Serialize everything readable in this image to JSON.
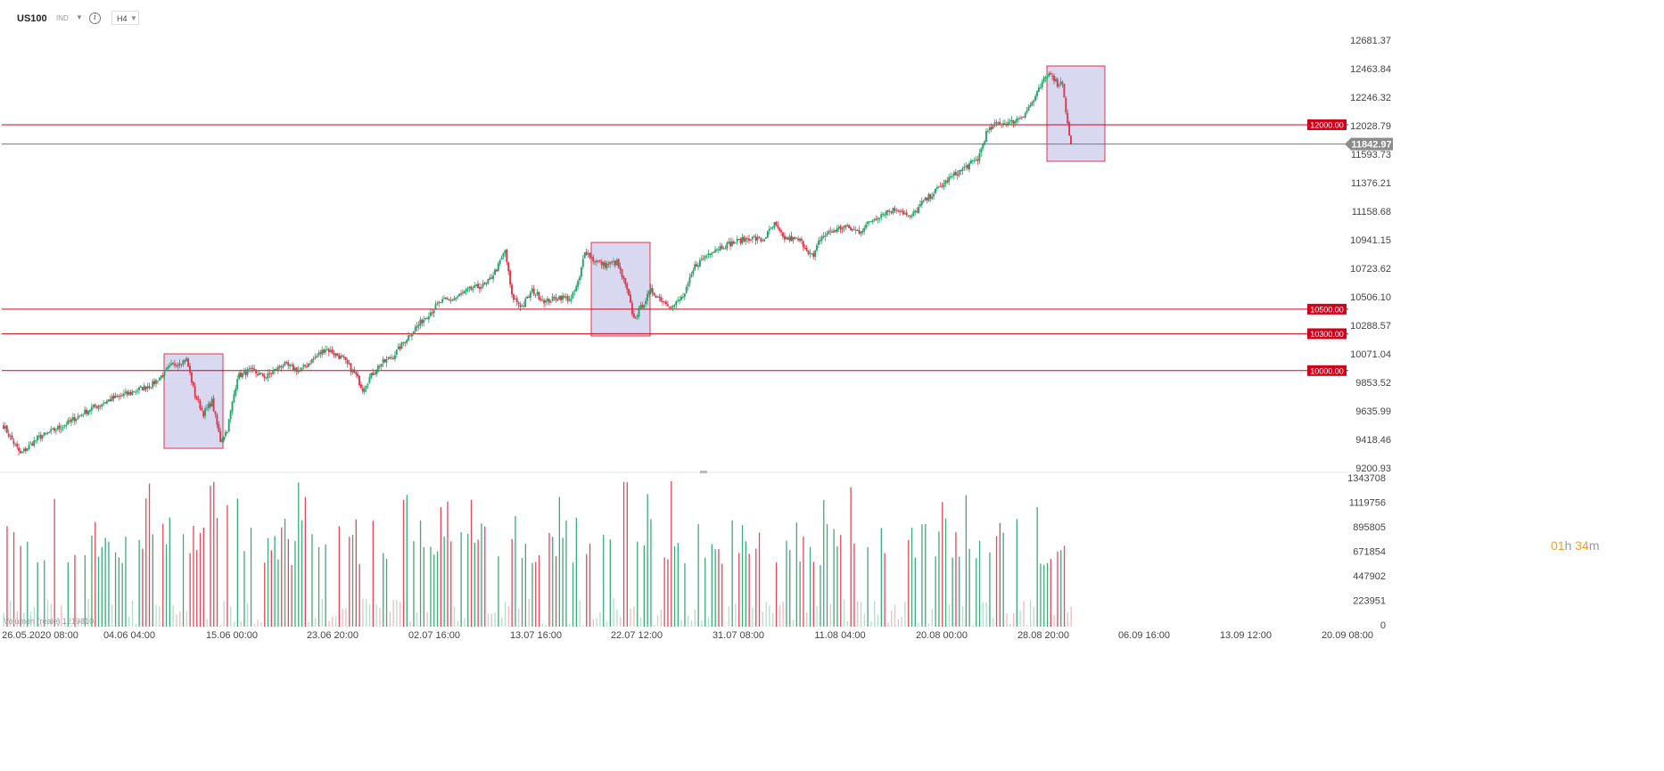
{
  "header": {
    "symbol": "US100",
    "symbol_type": "IND",
    "timeframe": "H4"
  },
  "countdown": {
    "hours": "01",
    "h_unit": "h",
    "minutes": "34",
    "m_unit": "m"
  },
  "volume_label": "Volumen (reale) 1219810",
  "price_axis_ticks": [
    "12681.37",
    "12463.84",
    "12246.32",
    "12028.79",
    "11593.73",
    "11376.21",
    "11158.68",
    "10941.15",
    "10723.62",
    "10506.10",
    "10288.57",
    "10071.04",
    "9853.52",
    "9635.99",
    "9418.46",
    "9200.93"
  ],
  "volume_axis_ticks": [
    "1343708",
    "1119756",
    "895805",
    "671854",
    "447902",
    "223951",
    "0"
  ],
  "time_axis_ticks": [
    "26.05.2020  08:00",
    "04.06  04:00",
    "15.06  00:00",
    "23.06  20:00",
    "02.07  16:00",
    "13.07  16:00",
    "22.07  12:00",
    "31.07  08:00",
    "11.08  04:00",
    "20.08  00:00",
    "28.08  20:00",
    "06.09  16:00",
    "13.09  12:00",
    "20.09  08:00"
  ],
  "colors": {
    "bull": "#26a269",
    "bear": "#e0344a",
    "level_line": "#d0021b",
    "current_line": "#777777",
    "highlight_fill": "#c8c8ea",
    "highlight_stroke": "#e0344a"
  },
  "chart_data": {
    "type": "candlestick",
    "symbol": "US100",
    "timeframe": "H4",
    "y_range": [
      9200.93,
      12681.37
    ],
    "current_price": "11842.97",
    "levels": [
      {
        "label": "12000.00",
        "value": 12000
      },
      {
        "label": "10500.00",
        "value": 10500
      },
      {
        "label": "10300.00",
        "value": 10300
      },
      {
        "label": "10000.00",
        "value": 10000
      }
    ],
    "price_path": [
      [
        0,
        9550
      ],
      [
        10,
        9320
      ],
      [
        20,
        9450
      ],
      [
        35,
        9550
      ],
      [
        50,
        9680
      ],
      [
        62,
        9760
      ],
      [
        75,
        9820
      ],
      [
        88,
        9890
      ],
      [
        100,
        10050
      ],
      [
        108,
        10090
      ],
      [
        113,
        9800
      ],
      [
        118,
        9650
      ],
      [
        123,
        9750
      ],
      [
        128,
        9430
      ],
      [
        132,
        9520
      ],
      [
        138,
        9950
      ],
      [
        145,
        10000
      ],
      [
        155,
        9950
      ],
      [
        165,
        10050
      ],
      [
        175,
        10000
      ],
      [
        185,
        10120
      ],
      [
        190,
        10180
      ],
      [
        200,
        10100
      ],
      [
        208,
        9960
      ],
      [
        212,
        9850
      ],
      [
        216,
        9940
      ],
      [
        222,
        10050
      ],
      [
        230,
        10120
      ],
      [
        240,
        10300
      ],
      [
        250,
        10450
      ],
      [
        258,
        10560
      ],
      [
        265,
        10580
      ],
      [
        275,
        10660
      ],
      [
        285,
        10700
      ],
      [
        292,
        10850
      ],
      [
        296,
        10980
      ],
      [
        300,
        10600
      ],
      [
        306,
        10520
      ],
      [
        312,
        10650
      ],
      [
        320,
        10560
      ],
      [
        328,
        10600
      ],
      [
        335,
        10580
      ],
      [
        340,
        10750
      ],
      [
        343,
        10980
      ],
      [
        348,
        10900
      ],
      [
        355,
        10860
      ],
      [
        362,
        10880
      ],
      [
        368,
        10650
      ],
      [
        372,
        10420
      ],
      [
        376,
        10510
      ],
      [
        382,
        10650
      ],
      [
        388,
        10580
      ],
      [
        395,
        10520
      ],
      [
        402,
        10620
      ],
      [
        408,
        10850
      ],
      [
        418,
        10980
      ],
      [
        428,
        11030
      ],
      [
        440,
        11080
      ],
      [
        448,
        11060
      ],
      [
        455,
        11190
      ],
      [
        460,
        11080
      ],
      [
        470,
        11060
      ],
      [
        478,
        10920
      ],
      [
        482,
        11080
      ],
      [
        488,
        11130
      ],
      [
        496,
        11170
      ],
      [
        505,
        11130
      ],
      [
        512,
        11220
      ],
      [
        520,
        11290
      ],
      [
        528,
        11320
      ],
      [
        535,
        11240
      ],
      [
        542,
        11360
      ],
      [
        550,
        11460
      ],
      [
        558,
        11560
      ],
      [
        566,
        11640
      ],
      [
        575,
        11720
      ],
      [
        580,
        11930
      ],
      [
        586,
        12010
      ],
      [
        595,
        12020
      ],
      [
        602,
        12080
      ],
      [
        608,
        12200
      ],
      [
        614,
        12360
      ],
      [
        618,
        12430
      ],
      [
        622,
        12330
      ],
      [
        625,
        12350
      ],
      [
        628,
        12000
      ],
      [
        630,
        11843
      ]
    ],
    "volume_range": [
      0,
      1343708
    ]
  }
}
